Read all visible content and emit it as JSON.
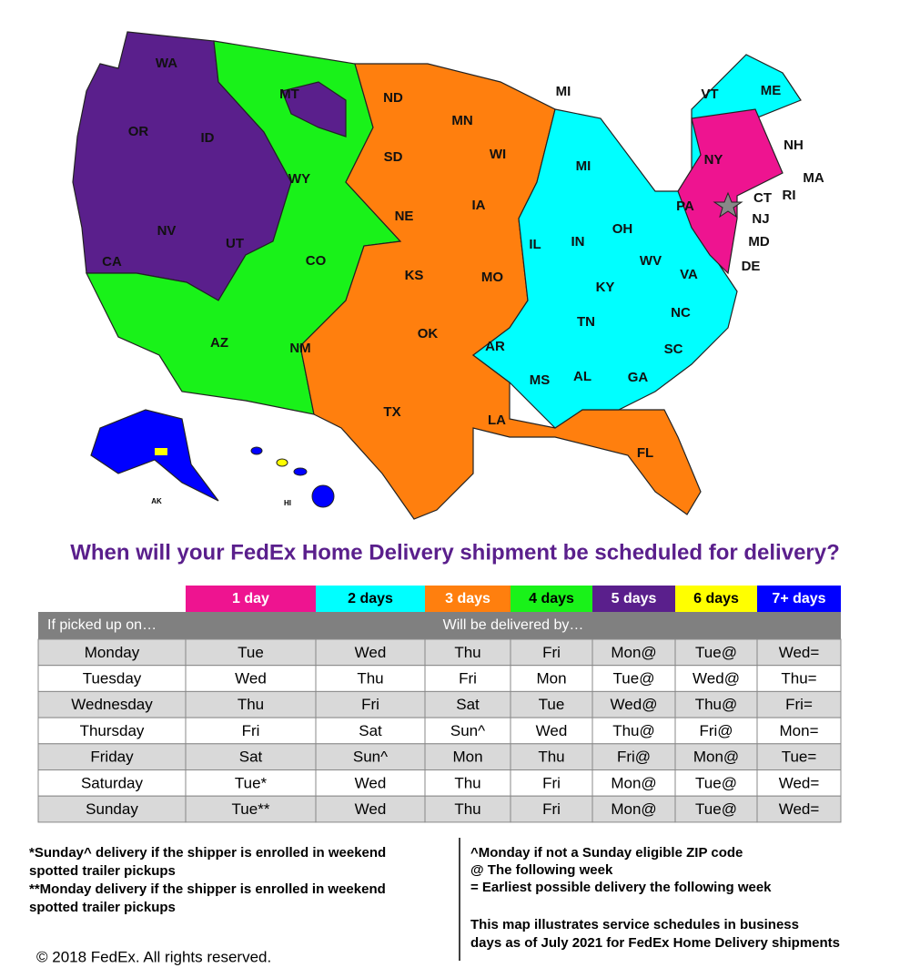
{
  "map": {
    "state_labels": [
      "WA",
      "OR",
      "ID",
      "MT",
      "ND",
      "MN",
      "MI",
      "VT",
      "ME",
      "NH",
      "MA",
      "RI",
      "CT",
      "NJ",
      "MD",
      "DE",
      "NY",
      "PA",
      "SD",
      "WY",
      "WI",
      "MI",
      "IA",
      "NE",
      "IL",
      "IN",
      "OH",
      "NV",
      "UT",
      "CA",
      "CO",
      "KS",
      "MO",
      "WV",
      "VA",
      "KY",
      "NC",
      "TN",
      "OK",
      "AR",
      "SC",
      "AZ",
      "NM",
      "MS",
      "AL",
      "GA",
      "TX",
      "LA",
      "FL"
    ],
    "inset_labels": [
      "AK",
      "HI"
    ]
  },
  "heading": "When will your FedEx Home Delivery shipment be scheduled for delivery?",
  "table": {
    "legend": [
      "1 day",
      "2 days",
      "3 days",
      "4 days",
      "5 days",
      "6 days",
      "7+ days"
    ],
    "header": [
      "If picked up on…",
      "Will be delivered by…"
    ],
    "rows": [
      [
        "Monday",
        "Tue",
        "Wed",
        "Thu",
        "Fri",
        "Mon@",
        "Tue@",
        "Wed="
      ],
      [
        "Tuesday",
        "Wed",
        "Thu",
        "Fri",
        "Mon",
        "Tue@",
        "Wed@",
        "Thu="
      ],
      [
        "Wednesday",
        "Thu",
        "Fri",
        "Sat",
        "Tue",
        "Wed@",
        "Thu@",
        "Fri="
      ],
      [
        "Thursday",
        "Fri",
        "Sat",
        "Sun^",
        "Wed",
        "Thu@",
        "Fri@",
        "Mon="
      ],
      [
        "Friday",
        "Sat",
        "Sun^",
        "Mon",
        "Thu",
        "Fri@",
        "Mon@",
        "Tue="
      ],
      [
        "Saturday",
        "Tue*",
        "Wed",
        "Thu",
        "Fri",
        "Mon@",
        "Tue@",
        "Wed="
      ],
      [
        "Sunday",
        "Tue**",
        "Wed",
        "Thu",
        "Fri",
        "Mon@",
        "Tue@",
        "Wed="
      ]
    ]
  },
  "notes": {
    "left": [
      "*Sunday^ delivery if the shipper is enrolled in weekend",
      "spotted trailer pickups",
      "**Monday delivery if the shipper is enrolled in weekend",
      "spotted trailer pickups"
    ],
    "right": [
      "^Monday if not a Sunday eligible ZIP code",
      "@ The following week",
      "= Earliest possible delivery the following week",
      "This map illustrates service schedules in business",
      "days as of July 2021 for FedEx Home Delivery shipments"
    ]
  },
  "copyright": "© 2018 FedEx.  All rights reserved."
}
